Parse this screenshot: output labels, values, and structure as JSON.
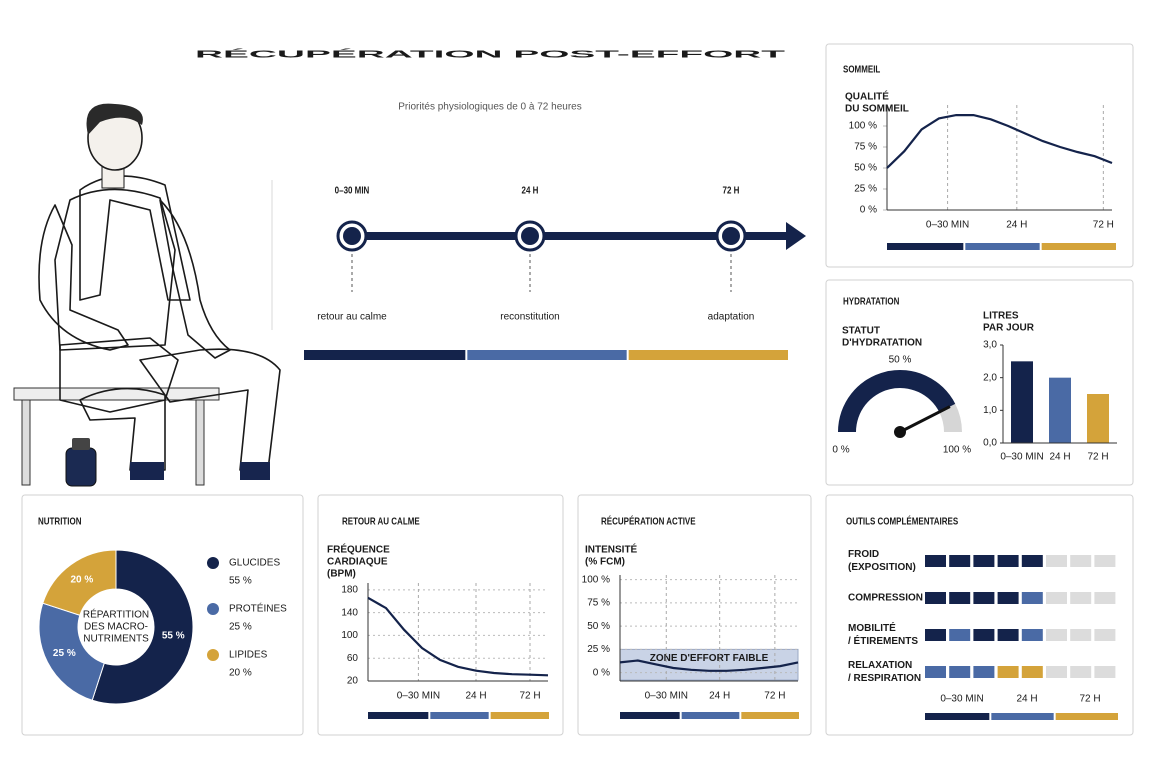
{
  "header": {
    "title": "RÉCUPÉRATION POST-EFFORT",
    "subtitle": "Priorités physiologiques de 0 à 72 heures"
  },
  "timeline": {
    "stages": [
      "0–30 MIN",
      "24 H",
      "72 H"
    ],
    "captions": [
      "retour au calme",
      "reconstitution",
      "adaptation"
    ],
    "colors": [
      "#14234b",
      "#4a6aa5",
      "#d4a33a"
    ]
  },
  "chart_data": [
    {
      "type": "line",
      "title": "SOMMEIL",
      "y_label": [
        "QUALITÉ",
        "DU SOMMEIL"
      ],
      "x": [
        0,
        1,
        2,
        3,
        4,
        5,
        6,
        7,
        8,
        9,
        10,
        11,
        12,
        13
      ],
      "values": [
        50,
        70,
        96,
        109,
        113,
        113,
        108,
        100,
        91,
        82,
        75,
        69,
        64,
        56
      ],
      "xlim": [
        0,
        13
      ],
      "xticks": [
        {
          "value": 3.5,
          "label": "0–30 MIN"
        },
        {
          "value": 7.5,
          "label": "24 H"
        },
        {
          "value": 12.5,
          "label": "72 H"
        }
      ],
      "ylim": [
        0,
        125
      ],
      "yticks": [
        {
          "value": 0,
          "label": "0 %"
        },
        {
          "value": 25,
          "label": "25 %"
        },
        {
          "value": 50,
          "label": "50 %"
        },
        {
          "value": 75,
          "label": "75 %"
        },
        {
          "value": 100,
          "label": "100 %"
        }
      ],
      "grid": "x",
      "color": "#14234b"
    },
    {
      "type": "gauge",
      "title": "HYDRATATION",
      "y_label": [
        "STATUT",
        "D'HYDRATATION"
      ],
      "value": 85,
      "range": [
        0,
        100
      ],
      "ticks": [
        {
          "value": 0,
          "label": "0 %"
        },
        {
          "value": 50,
          "label": "50 %"
        },
        {
          "value": 100,
          "label": "100 %"
        }
      ],
      "color": "#14234b",
      "track_color": "#d6d6d6"
    },
    {
      "type": "bar",
      "y_label": [
        "LITRES",
        "PAR JOUR"
      ],
      "categories": [
        "0–30 MIN",
        "24 H",
        "72 H"
      ],
      "values": [
        2.5,
        2.0,
        1.5
      ],
      "colors": [
        "#14234b",
        "#4a6aa5",
        "#d4a33a"
      ],
      "ylim": [
        0,
        3
      ],
      "yticks": [
        {
          "value": 0,
          "label": "0,0"
        },
        {
          "value": 1,
          "label": "1,0"
        },
        {
          "value": 2,
          "label": "2,0"
        },
        {
          "value": 3,
          "label": "3,0"
        }
      ]
    },
    {
      "type": "donut",
      "title": "NUTRITION",
      "center_label": [
        "RÉPARTITION",
        "DES MACRO-",
        "NUTRIMENTS"
      ],
      "categories": [
        "GLUCIDES",
        "PROTÉINES",
        "LIPIDES"
      ],
      "values": [
        55,
        25,
        20
      ],
      "value_labels": [
        "55 %",
        "25 %",
        "20 %"
      ],
      "colors": [
        "#14234b",
        "#4a6aa5",
        "#d4a33a"
      ]
    },
    {
      "type": "line",
      "title": "RETOUR AU CALME",
      "y_label": [
        "FRÉQUENCE",
        "CARDIAQUE",
        "(BPM)"
      ],
      "x": [
        0,
        1,
        2,
        3,
        4,
        5,
        6,
        7,
        8,
        9,
        10
      ],
      "values": [
        166,
        148,
        110,
        78,
        57,
        45,
        38,
        34,
        32,
        31,
        30
      ],
      "xlim": [
        0,
        10
      ],
      "xticks": [
        {
          "value": 2.8,
          "label": "0–30 MIN"
        },
        {
          "value": 6,
          "label": "24 H"
        },
        {
          "value": 9,
          "label": "72 H"
        }
      ],
      "ylim": [
        20,
        192
      ],
      "yticks": [
        20,
        60,
        100,
        140,
        180
      ],
      "grid": "both",
      "color": "#14234b"
    },
    {
      "type": "line",
      "title": "RÉCUPÉRATION ACTIVE",
      "y_label": [
        "INTENSITÉ",
        "(% FCM)"
      ],
      "x": [
        0,
        1,
        2,
        3,
        4,
        5,
        6,
        7,
        8,
        9,
        10
      ],
      "values": [
        11,
        13,
        9,
        5,
        3,
        2,
        2,
        3,
        5,
        7,
        11
      ],
      "xlim": [
        0,
        10
      ],
      "xticks": [
        {
          "value": 2.6,
          "label": "0–30 MIN"
        },
        {
          "value": 5.6,
          "label": "24 H"
        },
        {
          "value": 8.7,
          "label": "72 H"
        }
      ],
      "ylim": [
        -9,
        105
      ],
      "yticks": [
        {
          "value": 0,
          "label": "0 %"
        },
        {
          "value": 25,
          "label": "25 %"
        },
        {
          "value": 50,
          "label": "50 %"
        },
        {
          "value": 75,
          "label": "75 %"
        },
        {
          "value": 100,
          "label": "100 %"
        }
      ],
      "band": [
        -8,
        25
      ],
      "band_label": "ZONE D'EFFORT FAIBLE",
      "band_color": "#c9d3e6",
      "grid": "both",
      "color": "#14234b"
    },
    {
      "type": "segments",
      "title": "OUTILS COMPLÉMENTAIRES",
      "rows": [
        [
          "FROID",
          "(EXPOSITION)"
        ],
        [
          "COMPRESSION"
        ],
        [
          "MOBILITÉ",
          "/ ÉTIREMENTS"
        ],
        [
          "RELAXATION",
          "/ RESPIRATION"
        ]
      ],
      "values": [
        5,
        5,
        5,
        5
      ],
      "max": 8,
      "colors": [
        [
          "#14234b",
          "#14234b",
          "#14234b",
          "#14234b",
          "#14234b"
        ],
        [
          "#14234b",
          "#14234b",
          "#14234b",
          "#14234b",
          "#4a6aa5"
        ],
        [
          "#14234b",
          "#4a6aa5",
          "#14234b",
          "#14234b",
          "#4a6aa5"
        ],
        [
          "#4a6aa5",
          "#4a6aa5",
          "#4a6aa5",
          "#d4a33a",
          "#d4a33a"
        ]
      ],
      "empty_color": "#dcdcdc",
      "x_labels": [
        "0–30 MIN",
        "24 H",
        "72 H"
      ]
    }
  ]
}
